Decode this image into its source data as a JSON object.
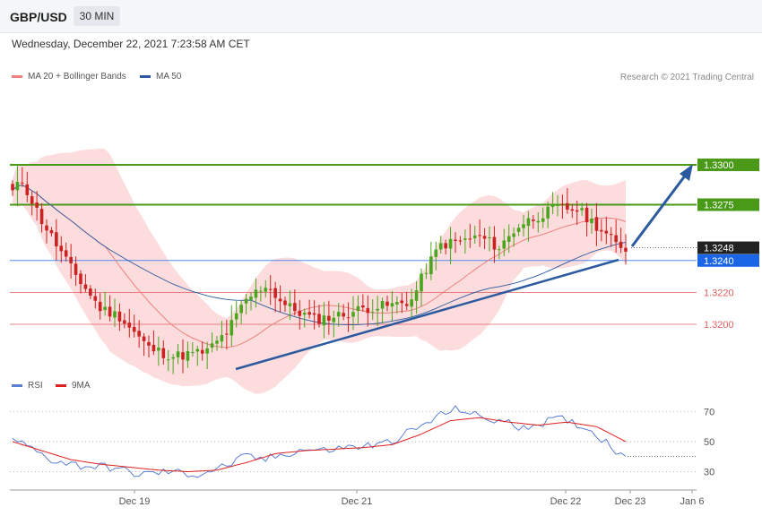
{
  "header": {
    "symbol": "GBP/USD",
    "interval": "30 MIN"
  },
  "datetime": "Wednesday, December 22, 2021 7:23:58 AM CET",
  "legend_main": [
    {
      "label": "MA 20 + Bollinger Bands",
      "color": "#f08080"
    },
    {
      "label": "MA 50",
      "color": "#2c5aa0"
    }
  ],
  "legend_rsi": [
    {
      "label": "RSI",
      "color": "#5b7fd4"
    },
    {
      "label": "9MA",
      "color": "#e02020"
    }
  ],
  "copyright": "Research © 2021 Trading Central",
  "colors": {
    "up": "#4aa61c",
    "down": "#cc2222",
    "resistance": "#4a9a1a",
    "pivot": "#1a66e6",
    "support": "#e06060",
    "last": "#222222",
    "trend": "#2c5aa0",
    "band": "#fbd0d0"
  },
  "chart_data": [
    {
      "type": "candlestick",
      "yticks": [
        1.33,
        1.3275,
        1.3248,
        1.324,
        1.322,
        1.32
      ],
      "ylim": [
        1.3142,
        1.3344
      ],
      "xlabels": [
        "Dec 19",
        "Dec 21",
        "Dec 22",
        "Dec 23",
        "Jan 6"
      ],
      "levels": [
        {
          "value": 1.33,
          "label": "1.3300",
          "role": "resistance"
        },
        {
          "value": 1.3275,
          "label": "1.3275",
          "role": "resistance"
        },
        {
          "value": 1.3248,
          "label": "1.3248",
          "role": "last"
        },
        {
          "value": 1.324,
          "label": "1.3240",
          "role": "pivot"
        },
        {
          "value": 1.322,
          "label": "1.3220",
          "role": "support"
        },
        {
          "value": 1.32,
          "label": "1.3200",
          "role": "support"
        }
      ],
      "close_keypoints": [
        [
          0,
          1.3283
        ],
        [
          2,
          1.329
        ],
        [
          6,
          1.3265
        ],
        [
          12,
          1.3235
        ],
        [
          18,
          1.321
        ],
        [
          22,
          1.3205
        ],
        [
          28,
          1.3185
        ],
        [
          33,
          1.318
        ],
        [
          38,
          1.3182
        ],
        [
          40,
          1.3183
        ],
        [
          44,
          1.3195
        ],
        [
          48,
          1.3215
        ],
        [
          52,
          1.3225
        ],
        [
          56,
          1.3212
        ],
        [
          62,
          1.3203
        ],
        [
          68,
          1.3206
        ],
        [
          72,
          1.321
        ],
        [
          78,
          1.3212
        ],
        [
          82,
          1.3215
        ],
        [
          85,
          1.3235
        ],
        [
          88,
          1.325
        ],
        [
          92,
          1.3252
        ],
        [
          96,
          1.3255
        ],
        [
          100,
          1.3248
        ],
        [
          104,
          1.3262
        ],
        [
          108,
          1.3268
        ],
        [
          112,
          1.3273
        ],
        [
          116,
          1.3272
        ],
        [
          120,
          1.3262
        ],
        [
          124,
          1.325
        ],
        [
          126,
          1.3248
        ]
      ],
      "moving_averages": "MA 20 + Bollinger Bands, MA 50",
      "projection": "arrow from 1.3248 up to 1.3300"
    },
    {
      "type": "line",
      "name": "RSI",
      "yticks": [
        70,
        50,
        30
      ],
      "ylim": [
        22,
        78
      ],
      "series_keypoints": {
        "RSI": [
          [
            0,
            52
          ],
          [
            4,
            45
          ],
          [
            8,
            38
          ],
          [
            14,
            34
          ],
          [
            20,
            33
          ],
          [
            26,
            28
          ],
          [
            32,
            30
          ],
          [
            38,
            28
          ],
          [
            44,
            34
          ],
          [
            48,
            40
          ],
          [
            52,
            38
          ],
          [
            56,
            42
          ],
          [
            60,
            45
          ],
          [
            64,
            44
          ],
          [
            68,
            46
          ],
          [
            72,
            47
          ],
          [
            76,
            48
          ],
          [
            80,
            54
          ],
          [
            84,
            60
          ],
          [
            88,
            68
          ],
          [
            92,
            72
          ],
          [
            96,
            66
          ],
          [
            100,
            64
          ],
          [
            104,
            60
          ],
          [
            108,
            62
          ],
          [
            112,
            65
          ],
          [
            116,
            62
          ],
          [
            120,
            55
          ],
          [
            124,
            44
          ],
          [
            126,
            42
          ]
        ],
        "9MA": [
          [
            0,
            50
          ],
          [
            6,
            44
          ],
          [
            12,
            38
          ],
          [
            18,
            35
          ],
          [
            24,
            33
          ],
          [
            30,
            31
          ],
          [
            36,
            30
          ],
          [
            42,
            31
          ],
          [
            48,
            36
          ],
          [
            54,
            42
          ],
          [
            60,
            44
          ],
          [
            66,
            45
          ],
          [
            72,
            46
          ],
          [
            78,
            48
          ],
          [
            84,
            55
          ],
          [
            90,
            64
          ],
          [
            96,
            66
          ],
          [
            102,
            63
          ],
          [
            108,
            61
          ],
          [
            114,
            63
          ],
          [
            120,
            60
          ],
          [
            126,
            50
          ]
        ]
      }
    }
  ]
}
